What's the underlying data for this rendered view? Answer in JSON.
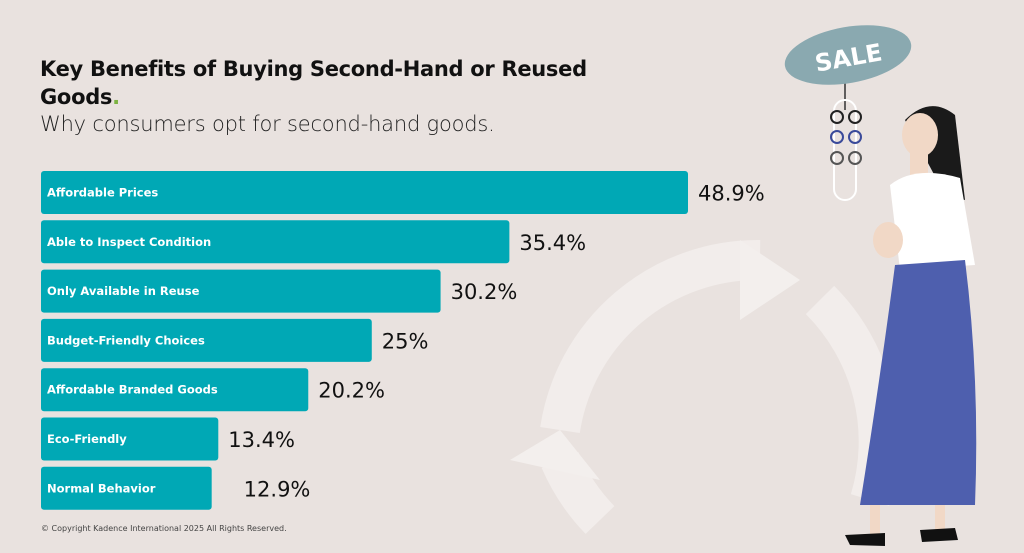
{
  "chart_data": {
    "type": "bar",
    "orientation": "horizontal",
    "title": "Key Benefits of Buying Second-Hand or Reused Goods",
    "subtitle": "Why consumers opt for second-hand goods.",
    "categories": [
      "Affordable Prices",
      "Able to Inspect Condition",
      "Only Available in Reuse",
      "Budget-Friendly Choices",
      "Affordable Branded Goods",
      "Eco-Friendly",
      "Normal Behavior"
    ],
    "values": [
      48.9,
      35.4,
      30.2,
      25,
      20.2,
      13.4,
      12.9
    ],
    "value_labels": [
      "48.9%",
      "35.4%",
      "30.2%",
      "25%",
      "20.2%",
      "13.4%",
      "12.9%"
    ],
    "unit": "%",
    "grid": false,
    "bar_color": "#00a8b5"
  },
  "illustration": {
    "sign_text": "SALE"
  },
  "footer": {
    "copyright": "© Copyright Kadence International 2025 All Rights Reserved."
  },
  "colors": {
    "background": "#e9e2df",
    "accent_dot": "#7cb342",
    "skirt": "#4e5fae",
    "sign": "#8aa9b0"
  }
}
